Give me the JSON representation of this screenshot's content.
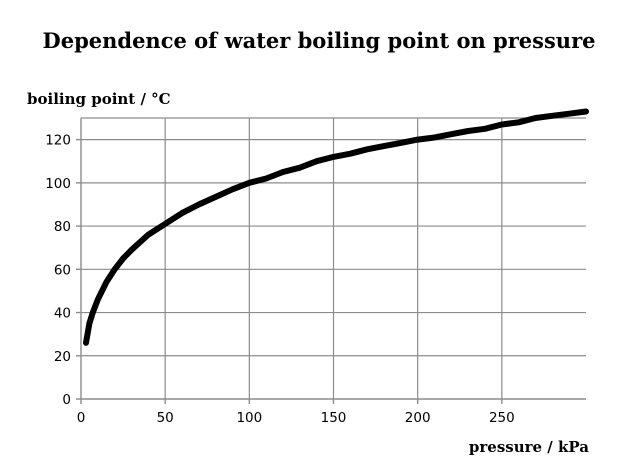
{
  "chart_data": {
    "type": "line",
    "title": "Dependence of water boiling point on pressure",
    "xlabel": "pressure / kPa",
    "ylabel": "boiling point / °C",
    "xlim": [
      0,
      300
    ],
    "ylim": [
      0,
      130
    ],
    "xticks": [
      0,
      50,
      100,
      150,
      200,
      250
    ],
    "yticks": [
      0,
      20,
      40,
      60,
      80,
      100,
      120
    ],
    "grid": true,
    "line_color": "#000000",
    "grid_color": "#8c8c8c",
    "series": [
      {
        "x": [
          3,
          5,
          7,
          10,
          15,
          20,
          25,
          30,
          40,
          50,
          60,
          70,
          80,
          90,
          100,
          110,
          120,
          130,
          140,
          150,
          160,
          170,
          180,
          190,
          200,
          210,
          220,
          230,
          240,
          250,
          260,
          270,
          280,
          290,
          300
        ],
        "values": [
          26,
          35,
          40,
          46,
          54,
          60,
          65,
          69,
          76,
          81,
          86,
          90,
          93.5,
          97,
          100,
          102,
          105,
          107,
          110,
          112,
          113.5,
          115.5,
          117,
          118.5,
          120,
          121,
          122.5,
          124,
          125,
          127,
          128,
          130,
          131,
          132,
          133
        ]
      }
    ]
  }
}
